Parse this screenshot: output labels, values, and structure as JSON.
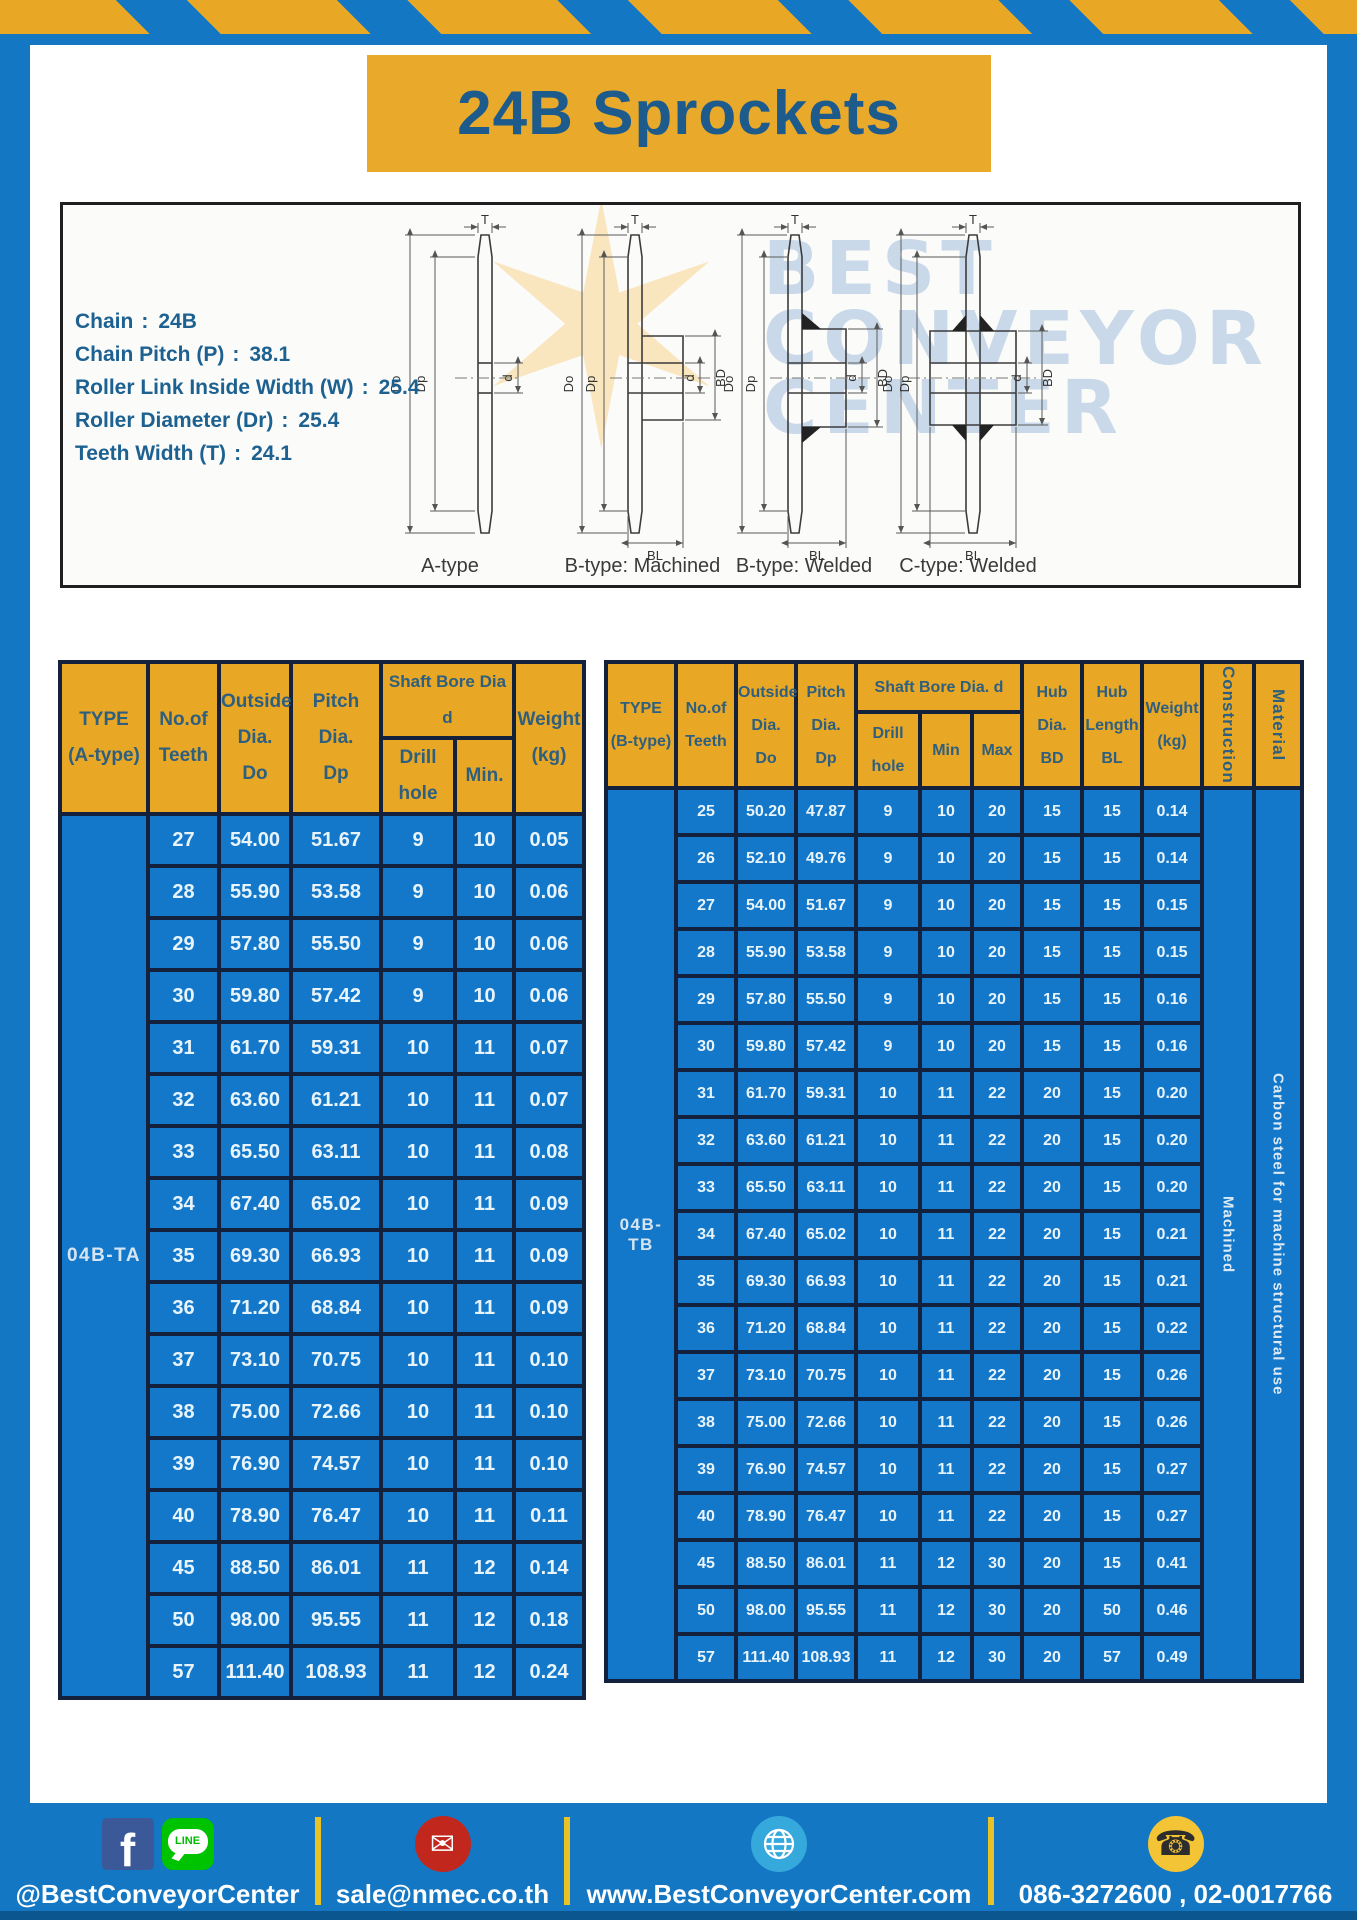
{
  "page": {
    "title": "24B Sprockets"
  },
  "specs": {
    "lines": [
      {
        "label": "Chain",
        "sep": ":",
        "value": "24B"
      },
      {
        "label": "Chain Pitch (P)",
        "sep": ":",
        "value": "38.1"
      },
      {
        "label": "Roller Link Inside Width (W)",
        "sep": ":",
        "value": "25.4"
      },
      {
        "label": "Roller Diameter (Dr)",
        "sep": ":",
        "value": "25.4"
      },
      {
        "label": "Teeth Width (T)",
        "sep": ":",
        "value": "24.1"
      }
    ],
    "diagram_captions": [
      "A-type",
      "B-type: Machined",
      "B-type: Welded",
      "C-type: Welded"
    ],
    "dimension_labels": [
      "T",
      "Do",
      "Dp",
      "d",
      "BD",
      "BL"
    ],
    "watermark": [
      "BEST",
      "CONVEYOR",
      "CENTER"
    ]
  },
  "table_a": {
    "headers": {
      "type": "TYPE\n(A-type)",
      "teeth": "No.of\nTeeth",
      "outside": "Outside\nDia.\nDo",
      "pitch": "Pitch Dia.\nDp",
      "shaft": "Shaft Bore Dia d",
      "drill": "Drill hole",
      "min": "Min.",
      "weight": "Weight\n(kg)"
    },
    "type_value": "04B-TA",
    "rows": [
      [
        "27",
        "54.00",
        "51.67",
        "9",
        "10",
        "0.05"
      ],
      [
        "28",
        "55.90",
        "53.58",
        "9",
        "10",
        "0.06"
      ],
      [
        "29",
        "57.80",
        "55.50",
        "9",
        "10",
        "0.06"
      ],
      [
        "30",
        "59.80",
        "57.42",
        "9",
        "10",
        "0.06"
      ],
      [
        "31",
        "61.70",
        "59.31",
        "10",
        "11",
        "0.07"
      ],
      [
        "32",
        "63.60",
        "61.21",
        "10",
        "11",
        "0.07"
      ],
      [
        "33",
        "65.50",
        "63.11",
        "10",
        "11",
        "0.08"
      ],
      [
        "34",
        "67.40",
        "65.02",
        "10",
        "11",
        "0.09"
      ],
      [
        "35",
        "69.30",
        "66.93",
        "10",
        "11",
        "0.09"
      ],
      [
        "36",
        "71.20",
        "68.84",
        "10",
        "11",
        "0.09"
      ],
      [
        "37",
        "73.10",
        "70.75",
        "10",
        "11",
        "0.10"
      ],
      [
        "38",
        "75.00",
        "72.66",
        "10",
        "11",
        "0.10"
      ],
      [
        "39",
        "76.90",
        "74.57",
        "10",
        "11",
        "0.10"
      ],
      [
        "40",
        "78.90",
        "76.47",
        "10",
        "11",
        "0.11"
      ],
      [
        "45",
        "88.50",
        "86.01",
        "11",
        "12",
        "0.14"
      ],
      [
        "50",
        "98.00",
        "95.55",
        "11",
        "12",
        "0.18"
      ],
      [
        "57",
        "111.40",
        "108.93",
        "11",
        "12",
        "0.24"
      ]
    ]
  },
  "table_b": {
    "headers": {
      "type": "TYPE\n(B-type)",
      "teeth": "No.of\nTeeth",
      "outside": "Outside\nDia.\nDo",
      "pitch": "Pitch\nDia.\nDp",
      "shaft": "Shaft Bore Dia. d",
      "drill": "Drill hole",
      "min": "Min",
      "max": "Max",
      "hub_dia": "Hub\nDia.\nBD",
      "hub_len": "Hub\nLength\nBL",
      "weight": "Weight\n(kg)",
      "construction": "Construction",
      "material": "Material"
    },
    "type_value": "04B-TB",
    "construction": "Machined",
    "material": "Carbon steel for machine structural use",
    "rows": [
      [
        "25",
        "50.20",
        "47.87",
        "9",
        "10",
        "20",
        "15",
        "15",
        "0.14"
      ],
      [
        "26",
        "52.10",
        "49.76",
        "9",
        "10",
        "20",
        "15",
        "15",
        "0.14"
      ],
      [
        "27",
        "54.00",
        "51.67",
        "9",
        "10",
        "20",
        "15",
        "15",
        "0.15"
      ],
      [
        "28",
        "55.90",
        "53.58",
        "9",
        "10",
        "20",
        "15",
        "15",
        "0.15"
      ],
      [
        "29",
        "57.80",
        "55.50",
        "9",
        "10",
        "20",
        "15",
        "15",
        "0.16"
      ],
      [
        "30",
        "59.80",
        "57.42",
        "9",
        "10",
        "20",
        "15",
        "15",
        "0.16"
      ],
      [
        "31",
        "61.70",
        "59.31",
        "10",
        "11",
        "22",
        "20",
        "15",
        "0.20"
      ],
      [
        "32",
        "63.60",
        "61.21",
        "10",
        "11",
        "22",
        "20",
        "15",
        "0.20"
      ],
      [
        "33",
        "65.50",
        "63.11",
        "10",
        "11",
        "22",
        "20",
        "15",
        "0.20"
      ],
      [
        "34",
        "67.40",
        "65.02",
        "10",
        "11",
        "22",
        "20",
        "15",
        "0.21"
      ],
      [
        "35",
        "69.30",
        "66.93",
        "10",
        "11",
        "22",
        "20",
        "15",
        "0.21"
      ],
      [
        "36",
        "71.20",
        "68.84",
        "10",
        "11",
        "22",
        "20",
        "15",
        "0.22"
      ],
      [
        "37",
        "73.10",
        "70.75",
        "10",
        "11",
        "22",
        "20",
        "15",
        "0.26"
      ],
      [
        "38",
        "75.00",
        "72.66",
        "10",
        "11",
        "22",
        "20",
        "15",
        "0.26"
      ],
      [
        "39",
        "76.90",
        "74.57",
        "10",
        "11",
        "22",
        "20",
        "15",
        "0.27"
      ],
      [
        "40",
        "78.90",
        "76.47",
        "10",
        "11",
        "22",
        "20",
        "15",
        "0.27"
      ],
      [
        "45",
        "88.50",
        "86.01",
        "11",
        "12",
        "30",
        "20",
        "15",
        "0.41"
      ],
      [
        "50",
        "98.00",
        "95.55",
        "11",
        "12",
        "30",
        "20",
        "50",
        "0.46"
      ],
      [
        "57",
        "111.40",
        "108.93",
        "11",
        "12",
        "30",
        "20",
        "57",
        "0.49"
      ]
    ]
  },
  "footer": {
    "items": [
      {
        "text": "@BestConveyorCenter"
      },
      {
        "text": "sale@nmec.co.th"
      },
      {
        "text": "www.BestConveyorCenter.com"
      },
      {
        "text": "086-3272600 , 02-0017766"
      }
    ]
  },
  "colors": {
    "frame_blue": "#1377c4",
    "gold": "#e9a726",
    "table_blue": "#1478ca",
    "border_navy": "#13213d",
    "title_text": "#1c5b8b",
    "footer_strip": "#0b568f"
  }
}
